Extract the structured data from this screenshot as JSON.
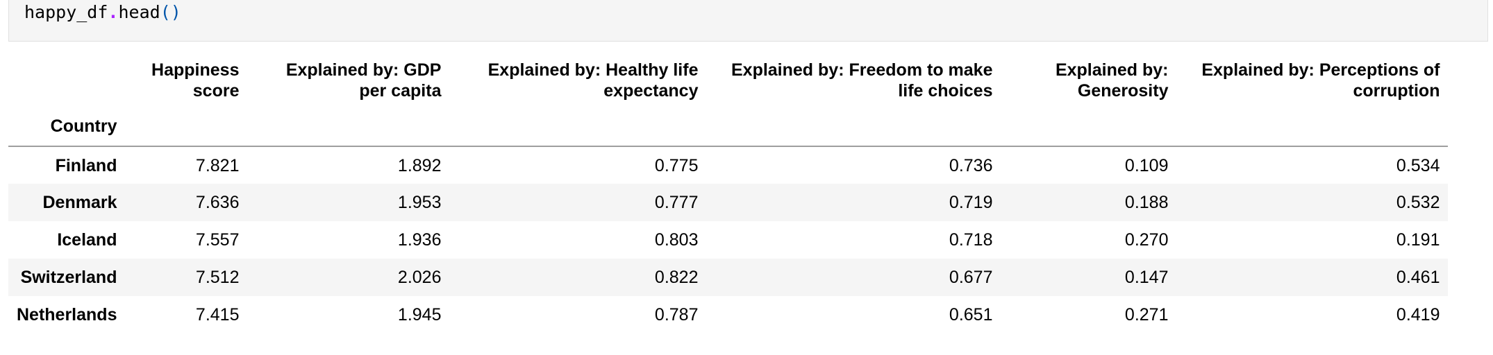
{
  "code_cell": {
    "object": "happy_df",
    "dot": ".",
    "method": "head",
    "parens": "()"
  },
  "dataframe": {
    "columns": [
      [
        "Happiness",
        "score"
      ],
      [
        "Explained by: GDP",
        "per capita"
      ],
      [
        "Explained by: Healthy life",
        "expectancy"
      ],
      [
        "Explained by: Freedom to make",
        "life choices"
      ],
      [
        "Explained by:",
        "Generosity"
      ],
      [
        "Explained by: Perceptions of",
        "corruption"
      ]
    ],
    "index_name": "Country",
    "rows": [
      {
        "index": "Finland",
        "values": [
          "7.821",
          "1.892",
          "0.775",
          "0.736",
          "0.109",
          "0.534"
        ]
      },
      {
        "index": "Denmark",
        "values": [
          "7.636",
          "1.953",
          "0.777",
          "0.719",
          "0.188",
          "0.532"
        ]
      },
      {
        "index": "Iceland",
        "values": [
          "7.557",
          "1.936",
          "0.803",
          "0.718",
          "0.270",
          "0.191"
        ]
      },
      {
        "index": "Switzerland",
        "values": [
          "7.512",
          "2.026",
          "0.822",
          "0.677",
          "0.147",
          "0.461"
        ]
      },
      {
        "index": "Netherlands",
        "values": [
          "7.415",
          "1.945",
          "0.787",
          "0.651",
          "0.271",
          "0.419"
        ]
      }
    ]
  },
  "colors": {
    "stripe": "#f5f5f5",
    "header_rule": "#9e9e9e",
    "method_dot": "#aa22ff",
    "parens": "#0055aa"
  }
}
